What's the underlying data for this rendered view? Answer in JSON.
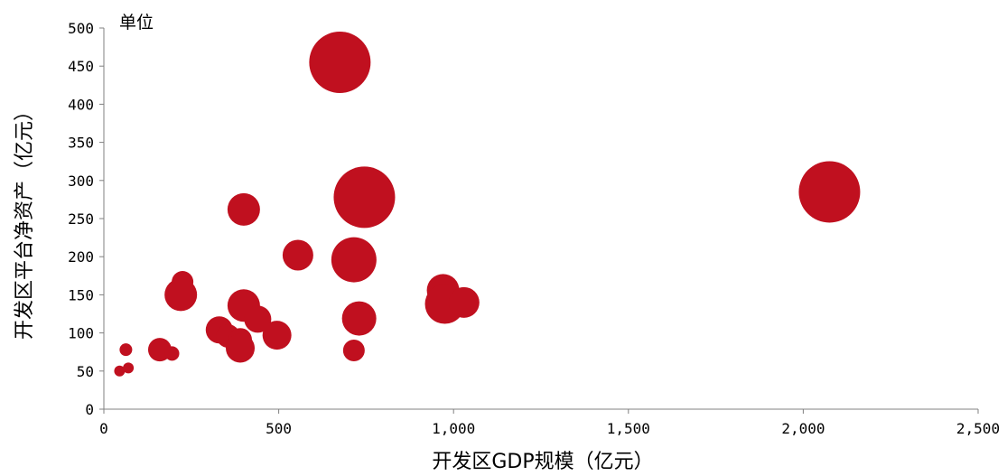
{
  "chart_data": {
    "type": "scatter",
    "xlabel": "开发区GDP规模（亿元）",
    "ylabel": "开发区平台净资产（亿元）",
    "unit_label": "单位",
    "xlim": [
      0,
      2500
    ],
    "ylim": [
      0,
      500
    ],
    "x_ticks": [
      0,
      500,
      1000,
      1500,
      2000,
      2500
    ],
    "x_tick_labels": [
      "0",
      "500",
      "1,000",
      "1,500",
      "2,000",
      "2,500"
    ],
    "y_ticks": [
      0,
      50,
      100,
      150,
      200,
      250,
      300,
      350,
      400,
      450,
      500
    ],
    "y_tick_labels": [
      "0",
      "50",
      "100",
      "150",
      "200",
      "250",
      "300",
      "350",
      "400",
      "450",
      "500"
    ],
    "grid": false,
    "legend": "none",
    "color": "#C0101F",
    "points": [
      {
        "x": 675,
        "y": 455,
        "r": 34
      },
      {
        "x": 2075,
        "y": 285,
        "r": 34
      },
      {
        "x": 745,
        "y": 278,
        "r": 34
      },
      {
        "x": 400,
        "y": 262,
        "r": 18
      },
      {
        "x": 715,
        "y": 196,
        "r": 25
      },
      {
        "x": 555,
        "y": 202,
        "r": 17
      },
      {
        "x": 225,
        "y": 167,
        "r": 12
      },
      {
        "x": 220,
        "y": 150,
        "r": 18
      },
      {
        "x": 970,
        "y": 156,
        "r": 18
      },
      {
        "x": 975,
        "y": 138,
        "r": 22
      },
      {
        "x": 1030,
        "y": 140,
        "r": 17
      },
      {
        "x": 400,
        "y": 136,
        "r": 18
      },
      {
        "x": 440,
        "y": 118,
        "r": 15
      },
      {
        "x": 730,
        "y": 119,
        "r": 19
      },
      {
        "x": 330,
        "y": 104,
        "r": 15
      },
      {
        "x": 355,
        "y": 96,
        "r": 13
      },
      {
        "x": 390,
        "y": 91,
        "r": 13
      },
      {
        "x": 495,
        "y": 97,
        "r": 16
      },
      {
        "x": 390,
        "y": 80,
        "r": 16
      },
      {
        "x": 715,
        "y": 77,
        "r": 12
      },
      {
        "x": 160,
        "y": 78,
        "r": 13
      },
      {
        "x": 195,
        "y": 73,
        "r": 8
      },
      {
        "x": 63,
        "y": 78,
        "r": 7
      },
      {
        "x": 70,
        "y": 54,
        "r": 6
      },
      {
        "x": 45,
        "y": 50,
        "r": 6
      }
    ]
  }
}
